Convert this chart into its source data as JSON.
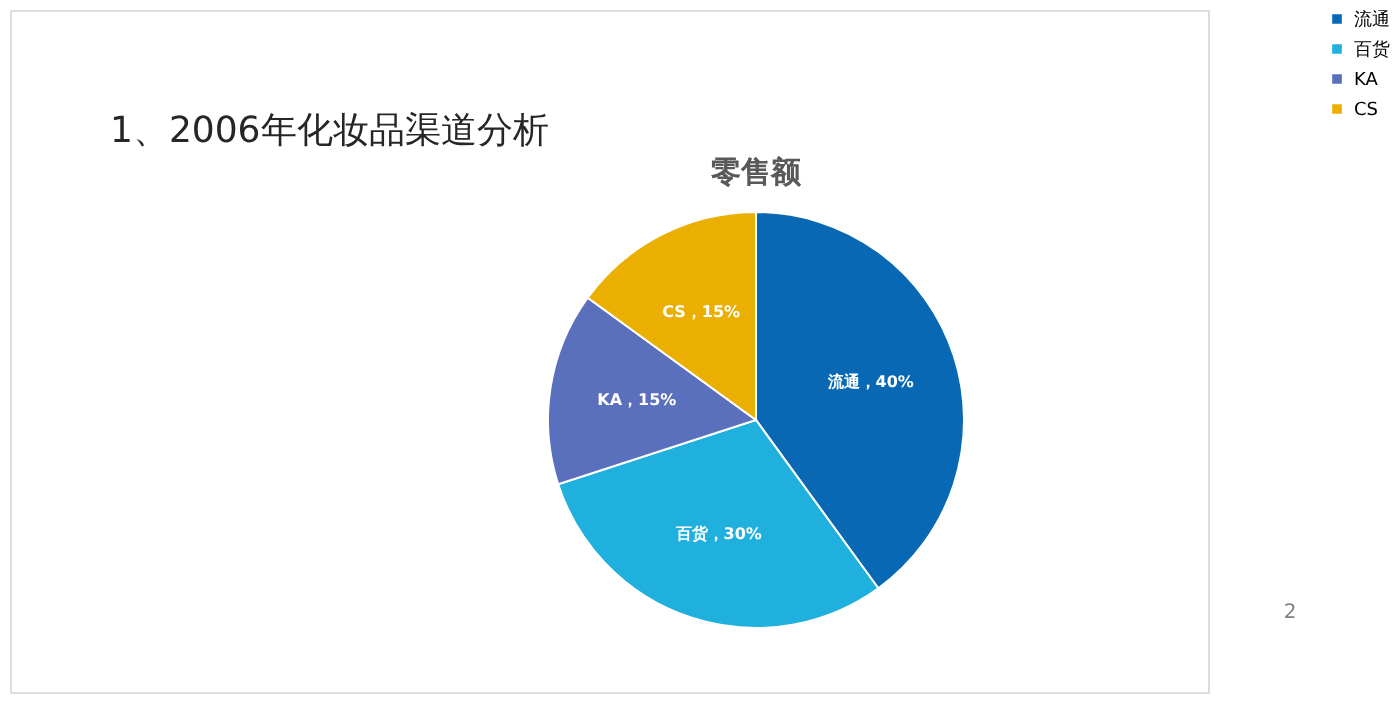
{
  "chart_data": {
    "type": "pie",
    "title": "1、2006年化妆品渠道分析",
    "subtitle": "零售额",
    "categories": [
      "流通",
      "百货",
      "KA",
      "CS"
    ],
    "values": [
      40,
      30,
      15,
      15
    ],
    "colors": [
      "#0868b4",
      "#1fb0de",
      "#5b70bc",
      "#eaaf00"
    ],
    "value_labels": [
      "流通，40%",
      "百货，30%",
      "KA，15%",
      "CS，15%"
    ],
    "legend": "right",
    "annotations": [
      "2"
    ]
  }
}
